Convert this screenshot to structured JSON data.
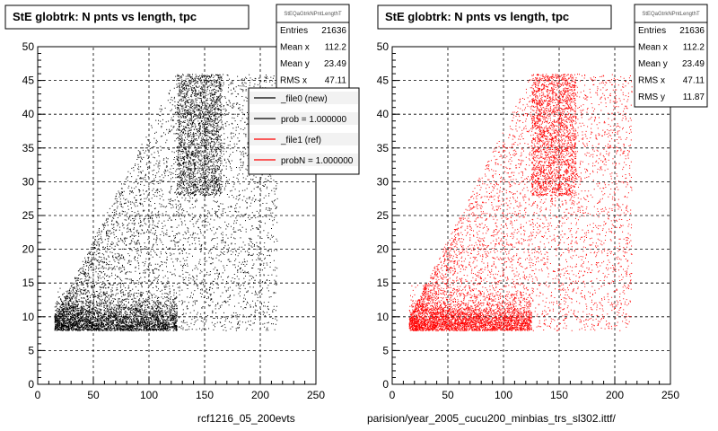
{
  "chart_data": [
    {
      "type": "scatter",
      "title": "StE globtrk: N pnts vs length, tpc",
      "color": "#000000",
      "xlim": [
        0,
        250
      ],
      "ylim": [
        0,
        50
      ],
      "xticks": [
        0,
        50,
        100,
        150,
        200,
        250
      ],
      "yticks": [
        0,
        5,
        10,
        15,
        20,
        25,
        30,
        35,
        40,
        45,
        50
      ],
      "grid": true,
      "caption": "rcf1216_05_200evts",
      "stats": {
        "name": "StEQaGtrkNPntLengthT",
        "rows": [
          {
            "label": "Entries",
            "value": "21636"
          },
          {
            "label": "Mean x",
            "value": "112.2"
          },
          {
            "label": "Mean y",
            "value": "23.49"
          },
          {
            "label": "RMS x",
            "value": "47.11"
          }
        ]
      },
      "legend": {
        "placement": "top-right",
        "entries": [
          {
            "label": "_file0 (new)",
            "color": "#000000"
          },
          {
            "label": "prob = 1.000000",
            "color": "#000000"
          },
          {
            "label": "_file1 (ref)",
            "color": "#ff0000"
          },
          {
            "label": "probN = 1.000000",
            "color": "#ff0000"
          }
        ]
      }
    },
    {
      "type": "scatter",
      "title": "StE globtrk: N pnts vs length, tpc",
      "color": "#ff0000",
      "xlim": [
        0,
        250
      ],
      "ylim": [
        0,
        50
      ],
      "xticks": [
        0,
        50,
        100,
        150,
        200,
        250
      ],
      "yticks": [
        0,
        5,
        10,
        15,
        20,
        25,
        30,
        35,
        40,
        45,
        50
      ],
      "grid": true,
      "caption": "parision/year_2005_cucu200_minbias_trs_sl302.ittf/",
      "stats": {
        "name": "StEQaGtrkNPntLengthT",
        "rows": [
          {
            "label": "Entries",
            "value": "21636"
          },
          {
            "label": "Mean x",
            "value": "112.2"
          },
          {
            "label": "Mean y",
            "value": "23.49"
          },
          {
            "label": "RMS x",
            "value": "47.11"
          },
          {
            "label": "RMS y",
            "value": "11.87"
          }
        ]
      }
    }
  ]
}
